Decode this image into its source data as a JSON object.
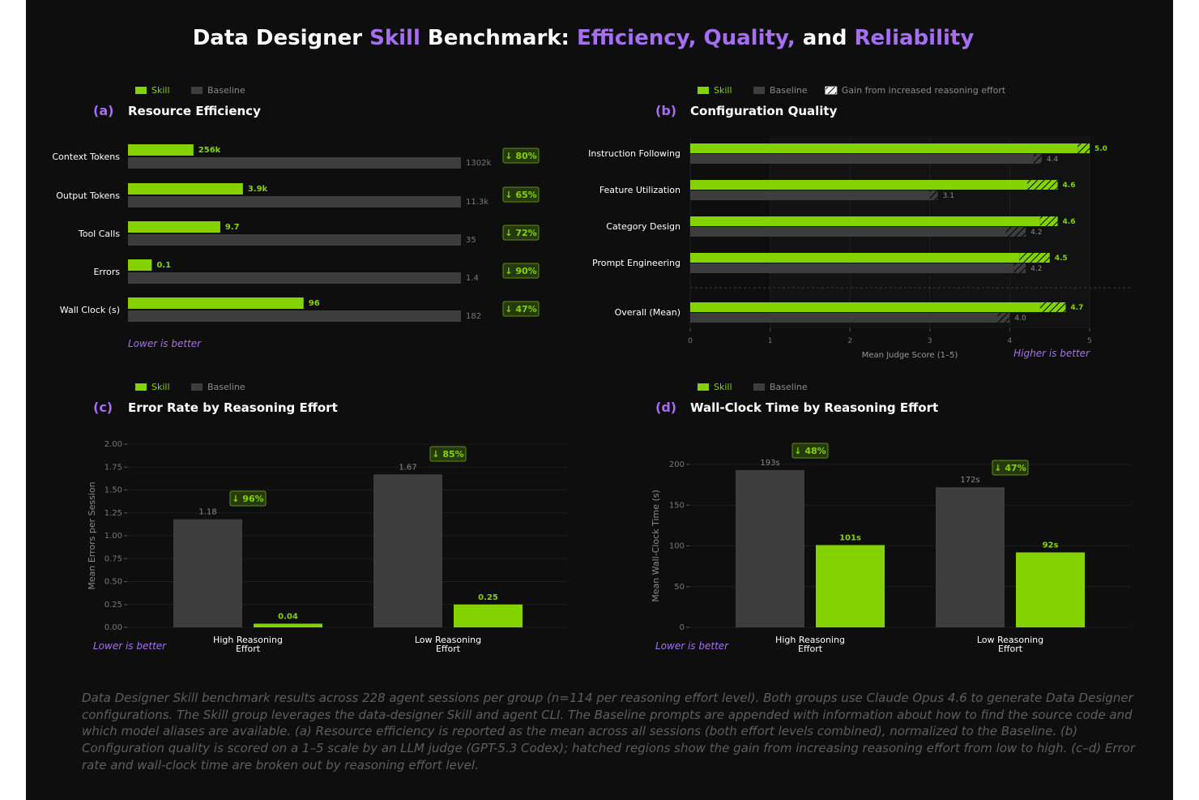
{
  "title": {
    "parts": [
      {
        "text": "Data Designer ",
        "accent": false
      },
      {
        "text": "Skill",
        "accent": true
      },
      {
        "text": " Benchmark: ",
        "accent": false
      },
      {
        "text": "Efficiency, Quality,",
        "accent": true
      },
      {
        "text": " and ",
        "accent": false
      },
      {
        "text": "Reliability",
        "accent": true
      }
    ]
  },
  "colors": {
    "skill": "#84d300",
    "baseline": "#3d3d3d",
    "accent": "#a66ff2",
    "badge_bg": "#253a08",
    "text": "#ffffff",
    "muted": "#8a8a8a",
    "background": "#0e0e0e"
  },
  "chart_data": [
    {
      "type": "bar",
      "orientation": "horizontal",
      "panel_label": "(a)",
      "title": "Resource Efficiency",
      "legend": [
        "Skill",
        "Baseline"
      ],
      "categories": [
        "Context Tokens",
        "Output Tokens",
        "Tool Calls",
        "Errors",
        "Wall Clock (s)"
      ],
      "normalized_to_baseline": true,
      "series": [
        {
          "name": "Skill",
          "values": [
            256,
            3.9,
            9.7,
            0.1,
            96
          ],
          "labels": [
            "256k",
            "3.9k",
            "9.7",
            "0.1",
            "96"
          ]
        },
        {
          "name": "Baseline",
          "values": [
            1302,
            11.3,
            35,
            1.4,
            182
          ],
          "labels": [
            "1302k",
            "11.3k",
            "35",
            "1.4",
            "182"
          ]
        }
      ],
      "badges": [
        "↓ 80%",
        "↓ 65%",
        "↓ 72%",
        "↓ 90%",
        "↓ 47%"
      ],
      "note": "Lower is better",
      "legend_position": "top-left"
    },
    {
      "type": "bar",
      "orientation": "horizontal",
      "panel_label": "(b)",
      "title": "Configuration Quality",
      "legend": [
        "Skill",
        "Baseline",
        "Gain from increased reasoning effort"
      ],
      "categories": [
        "Instruction Following",
        "Feature Utilization",
        "Category Design",
        "Prompt Engineering",
        "Overall (Mean)"
      ],
      "series": [
        {
          "name": "Skill",
          "values": [
            5.0,
            4.6,
            4.6,
            4.5,
            4.7
          ],
          "low_effort": [
            4.85,
            4.22,
            4.38,
            4.12,
            4.38
          ],
          "labels": [
            "5.0",
            "4.6",
            "4.6",
            "4.5",
            "4.7"
          ]
        },
        {
          "name": "Baseline",
          "values": [
            4.4,
            3.1,
            4.2,
            4.2,
            4.0
          ],
          "low_effort": [
            4.3,
            3.0,
            3.95,
            4.05,
            3.85
          ],
          "labels": [
            "4.4",
            "3.1",
            "4.2",
            "4.2",
            "4.0"
          ]
        }
      ],
      "xlim": [
        0,
        5
      ],
      "xticks": [
        "0",
        "1",
        "2",
        "3",
        "4",
        "5"
      ],
      "xlabel": "Mean Judge Score (1–5)",
      "note": "Higher is better",
      "legend_position": "top-left"
    },
    {
      "type": "bar",
      "panel_label": "(c)",
      "title": "Error Rate by Reasoning Effort",
      "legend": [
        "Skill",
        "Baseline"
      ],
      "categories": [
        "High Reasoning\nEffort",
        "Low Reasoning\nEffort"
      ],
      "series": [
        {
          "name": "Baseline",
          "values": [
            1.18,
            1.67
          ],
          "labels": [
            "1.18",
            "1.67"
          ]
        },
        {
          "name": "Skill",
          "values": [
            0.04,
            0.25
          ],
          "labels": [
            "0.04",
            "0.25"
          ]
        }
      ],
      "badges": [
        "↓ 96%",
        "↓ 85%"
      ],
      "ylabel": "Mean Errors per Session",
      "ylim": [
        0,
        2.0
      ],
      "yticks": [
        "0.00",
        "0.25",
        "0.50",
        "0.75",
        "1.00",
        "1.25",
        "1.50",
        "1.75",
        "2.00"
      ],
      "note": "Lower is better",
      "legend_position": "top-left"
    },
    {
      "type": "bar",
      "panel_label": "(d)",
      "title": "Wall-Clock Time by Reasoning Effort",
      "legend": [
        "Skill",
        "Baseline"
      ],
      "categories": [
        "High Reasoning\nEffort",
        "Low Reasoning\nEffort"
      ],
      "series": [
        {
          "name": "Baseline",
          "values": [
            193,
            172
          ],
          "labels": [
            "193s",
            "172s"
          ]
        },
        {
          "name": "Skill",
          "values": [
            101,
            92
          ],
          "labels": [
            "101s",
            "92s"
          ]
        }
      ],
      "badges": [
        "↓ 48%",
        "↓ 47%"
      ],
      "ylabel": "Mean Wall-Clock Time (s)",
      "ylim": [
        0,
        200
      ],
      "yticks": [
        "0",
        "50",
        "100",
        "150",
        "200"
      ],
      "note": "Lower is better",
      "legend_position": "top-left"
    }
  ],
  "caption": "Data Designer Skill benchmark results across 228 agent sessions per group (n=114 per reasoning effort level). Both groups use Claude Opus 4.6 to generate Data Designer configurations. The Skill group leverages the data-designer Skill and agent CLI. The Baseline prompts are appended with information about how to find the source code and which model aliases are available. (a) Resource efficiency is reported as the mean across all sessions (both effort levels combined), normalized to the Baseline. (b) Configuration quality is scored on a 1–5 scale by an LLM judge (GPT-5.3 Codex); hatched regions show the gain from increasing reasoning effort from low to high. (c–d) Error rate and wall-clock time are broken out by reasoning effort level."
}
